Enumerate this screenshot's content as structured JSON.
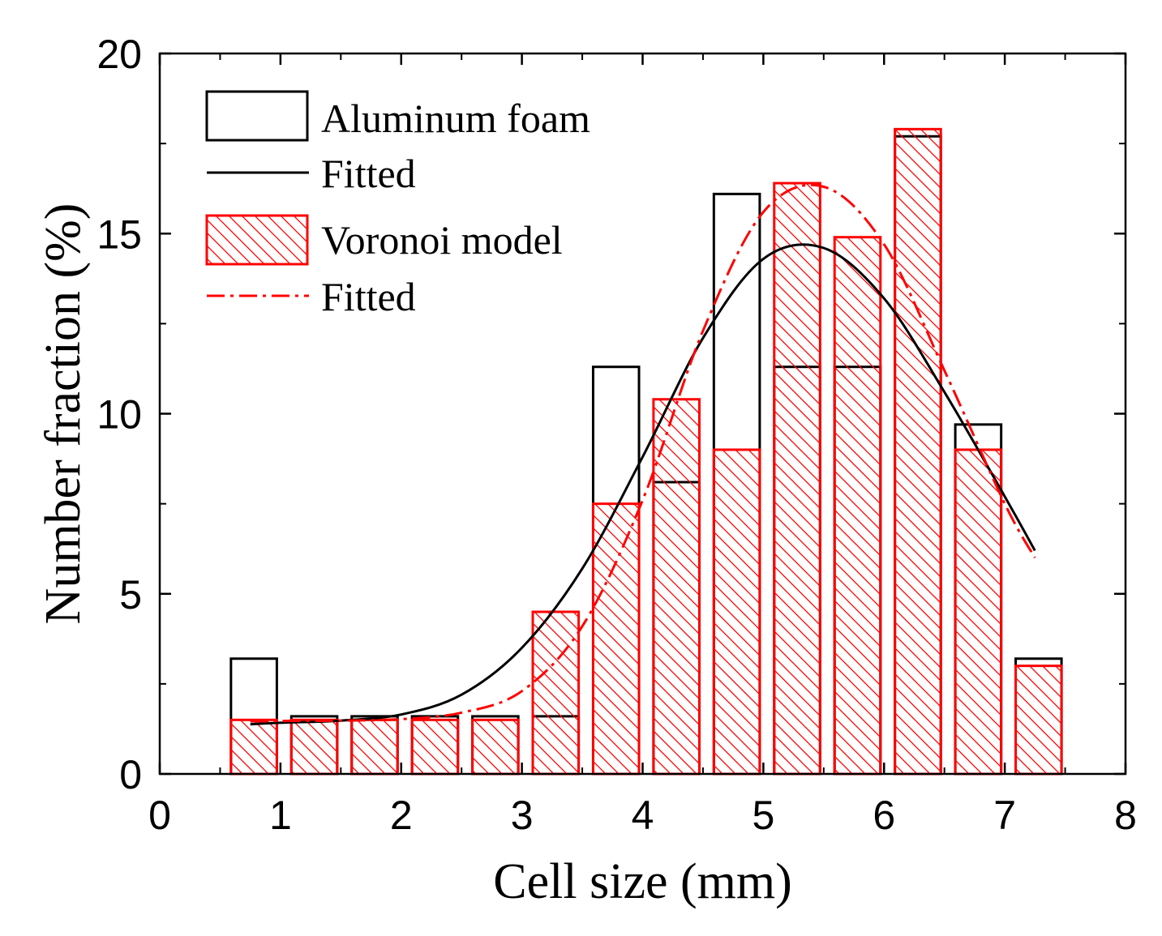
{
  "chart_data": {
    "type": "bar",
    "title": "",
    "xlabel": "Cell size (mm)",
    "ylabel": "Number fraction (%)",
    "xlim": [
      0,
      8
    ],
    "ylim": [
      0,
      20
    ],
    "xticks": [
      0,
      1,
      2,
      3,
      4,
      5,
      6,
      7,
      8
    ],
    "yticks": [
      0,
      5,
      10,
      15,
      20
    ],
    "xtick_labels": [
      "0",
      "1",
      "2",
      "3",
      "4",
      "5",
      "6",
      "7",
      "8"
    ],
    "ytick_labels": [
      "0",
      "5",
      "10",
      "15",
      "20"
    ],
    "bin_width": 0.38,
    "categories": [
      0.78,
      1.28,
      1.78,
      2.28,
      2.78,
      3.28,
      3.78,
      4.28,
      4.78,
      5.28,
      5.78,
      6.28,
      6.78,
      7.28
    ],
    "series": [
      {
        "name": "Aluminum foam",
        "style": "open",
        "color": "#000000",
        "values": [
          3.2,
          1.6,
          1.6,
          1.6,
          1.6,
          1.6,
          11.3,
          8.1,
          16.1,
          11.3,
          11.3,
          17.7,
          9.7,
          3.2
        ]
      },
      {
        "name": "Voronoi model",
        "style": "hatched",
        "color": "#ff0000",
        "values": [
          1.5,
          1.5,
          1.5,
          1.5,
          1.5,
          4.5,
          7.5,
          10.4,
          9.0,
          16.4,
          14.9,
          17.9,
          9.0,
          3.0
        ]
      }
    ],
    "fitted": [
      {
        "name": "Fitted",
        "for": "Aluminum foam",
        "color": "#000000",
        "dash": "solid",
        "x": [
          0.75,
          1.0,
          1.5,
          2.0,
          2.5,
          3.0,
          3.5,
          4.0,
          4.5,
          5.0,
          5.5,
          6.0,
          6.5,
          7.0,
          7.25
        ],
        "y": [
          1.38,
          1.42,
          1.48,
          1.65,
          2.2,
          3.5,
          5.7,
          8.8,
          12.1,
          14.3,
          14.6,
          13.2,
          10.6,
          7.7,
          6.2
        ]
      },
      {
        "name": "Fitted",
        "for": "Voronoi model",
        "color": "#ff0000",
        "dash": "dash-dot",
        "x": [
          0.75,
          1.0,
          1.5,
          2.0,
          2.5,
          3.0,
          3.5,
          4.0,
          4.5,
          5.0,
          5.5,
          6.0,
          6.5,
          7.0,
          7.25
        ],
        "y": [
          1.46,
          1.47,
          1.48,
          1.52,
          1.7,
          2.3,
          4.1,
          7.6,
          12.3,
          15.6,
          16.3,
          14.7,
          11.2,
          7.5,
          6.0
        ]
      }
    ],
    "legend": {
      "placement": "top-left",
      "entries": [
        "Aluminum foam",
        "Fitted",
        "Voronoi model",
        "Fitted"
      ]
    }
  }
}
